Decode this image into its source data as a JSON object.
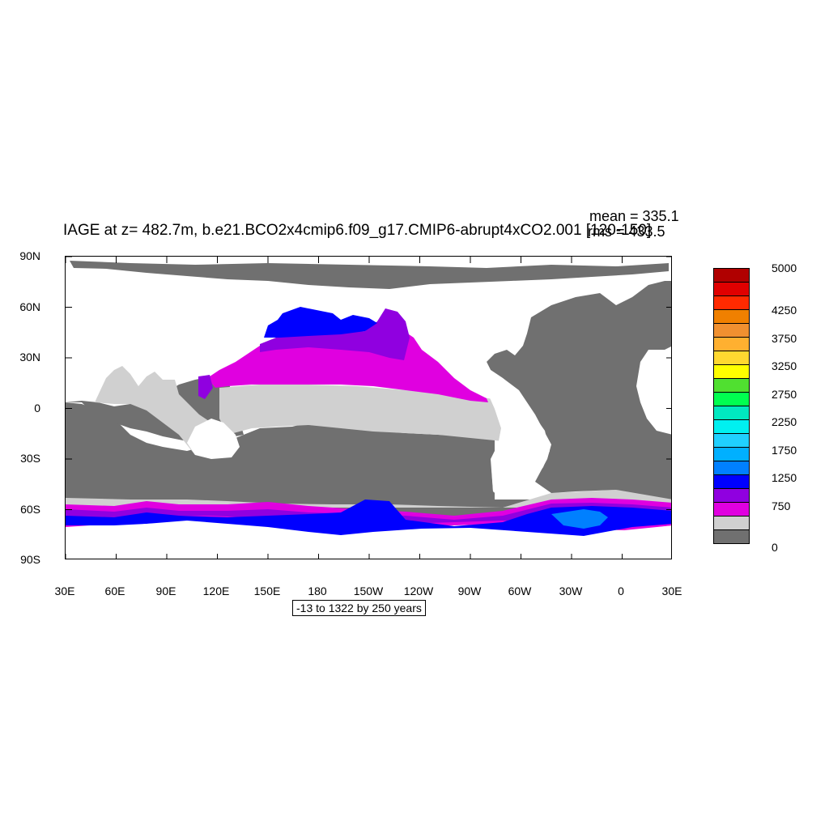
{
  "title": "IAGE at z= 482.7m, b.e21.BCO2x4cmip6.f09_g17.CMIP6-abrupt4xCO2.001 [120-150]",
  "stats": {
    "mean": "mean = 335.1",
    "rms": "rms = 433.5"
  },
  "range_label": "-13 to 1322 by 250 years",
  "lat_ticks": [
    "90N",
    "60N",
    "30N",
    "0",
    "30S",
    "60S",
    "90S"
  ],
  "lon_ticks": [
    "30E",
    "60E",
    "90E",
    "120E",
    "150E",
    "180",
    "150W",
    "120W",
    "90W",
    "60W",
    "30W",
    "0",
    "30E"
  ],
  "colorbar": {
    "colors": [
      "#b00000",
      "#e00000",
      "#ff2a00",
      "#f08000",
      "#f09030",
      "#ffb030",
      "#ffd830",
      "#ffff00",
      "#50e030",
      "#00ff50",
      "#00e8c0",
      "#00f0f0",
      "#20d0ff",
      "#00b0ff",
      "#0080ff",
      "#0000ff",
      "#9000e0",
      "#e000e0",
      "#d0d0d0",
      "#707070"
    ],
    "labels": [
      "5000",
      "4250",
      "3750",
      "3250",
      "2750",
      "2250",
      "1750",
      "1250",
      "750",
      "0"
    ]
  },
  "palette": {
    "land": "#ffffff",
    "low": "#707070",
    "l250": "#d0d0d0",
    "l500": "#e000e0",
    "l750": "#9000e0",
    "l1000": "#0000ff",
    "l1250": "#0080ff"
  }
}
